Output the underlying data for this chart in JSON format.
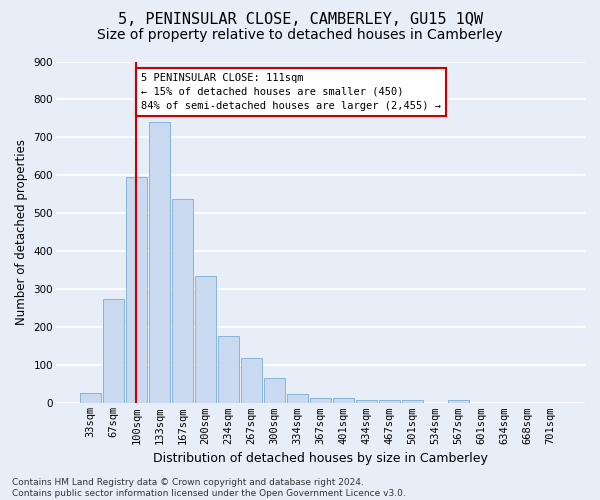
{
  "title": "5, PENINSULAR CLOSE, CAMBERLEY, GU15 1QW",
  "subtitle": "Size of property relative to detached houses in Camberley",
  "xlabel": "Distribution of detached houses by size in Camberley",
  "ylabel": "Number of detached properties",
  "categories": [
    "33sqm",
    "67sqm",
    "100sqm",
    "133sqm",
    "167sqm",
    "200sqm",
    "234sqm",
    "267sqm",
    "300sqm",
    "334sqm",
    "367sqm",
    "401sqm",
    "434sqm",
    "467sqm",
    "501sqm",
    "534sqm",
    "567sqm",
    "601sqm",
    "634sqm",
    "668sqm",
    "701sqm"
  ],
  "values": [
    27,
    275,
    595,
    740,
    538,
    335,
    178,
    120,
    68,
    25,
    15,
    13,
    10,
    8,
    8,
    0,
    8,
    0,
    0,
    0,
    0
  ],
  "bar_color": "#c8d9f0",
  "bar_edge_color": "#7aadd4",
  "background_color": "#e8eef8",
  "grid_color": "#ffffff",
  "vline_x_index": 2,
  "vline_color": "#cc0000",
  "annotation_text": "5 PENINSULAR CLOSE: 111sqm\n← 15% of detached houses are smaller (450)\n84% of semi-detached houses are larger (2,455) →",
  "annotation_box_facecolor": "#ffffff",
  "annotation_box_edgecolor": "#cc0000",
  "ylim": [
    0,
    900
  ],
  "yticks": [
    0,
    100,
    200,
    300,
    400,
    500,
    600,
    700,
    800,
    900
  ],
  "footer_line1": "Contains HM Land Registry data © Crown copyright and database right 2024.",
  "footer_line2": "Contains public sector information licensed under the Open Government Licence v3.0.",
  "title_fontsize": 11,
  "subtitle_fontsize": 10,
  "xlabel_fontsize": 9,
  "ylabel_fontsize": 8.5,
  "tick_fontsize": 7.5,
  "annotation_fontsize": 7.5,
  "footer_fontsize": 6.5
}
